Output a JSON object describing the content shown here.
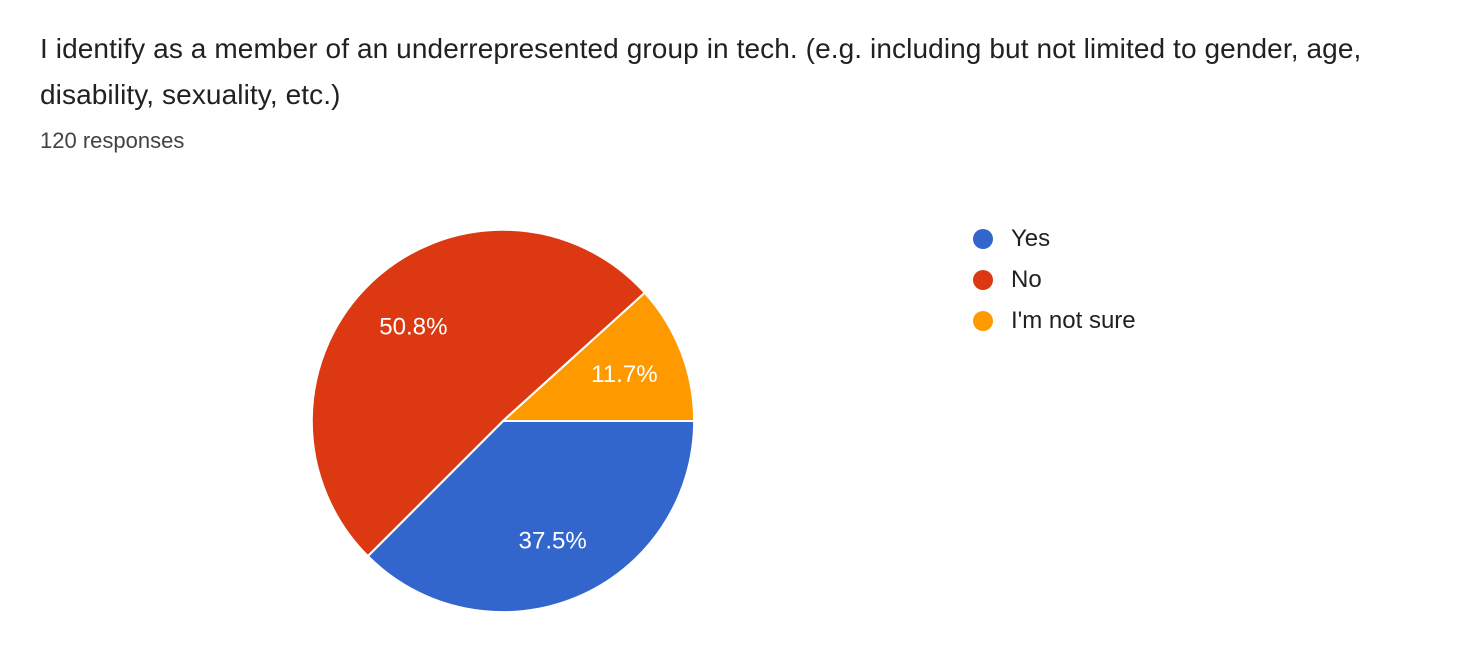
{
  "header": {
    "title": "I identify as a member of an underrepresented group in tech. (e.g. including but not limited to gender, age, disability, sexuality, etc.)",
    "responses_count": "120 responses"
  },
  "chart_data": {
    "type": "pie",
    "title": "I identify as a member of an underrepresented group in tech. (e.g. including but not limited to gender, age, disability, sexuality, etc.)",
    "subtitle": "120 responses",
    "total_responses": 120,
    "legend_position": "right",
    "start_angle_deg": 90,
    "direction": "clockwise",
    "slice_border_color": "#ffffff",
    "slice_label_color": "#ffffff",
    "slice_label_radius_fraction": 0.68,
    "categories": [
      "Yes",
      "No",
      "I'm not sure"
    ],
    "values": [
      37.5,
      50.8,
      11.7
    ],
    "slices": [
      {
        "id": "yes",
        "label": "Yes",
        "value": 37.5,
        "percent_label": "37.5%",
        "color": "#3366cc"
      },
      {
        "id": "no",
        "label": "No",
        "value": 50.8,
        "percent_label": "50.8%",
        "color": "#dc3912"
      },
      {
        "id": "not-sure",
        "label": "I'm not sure",
        "value": 11.7,
        "percent_label": "11.7%",
        "color": "#ff9900"
      }
    ]
  }
}
